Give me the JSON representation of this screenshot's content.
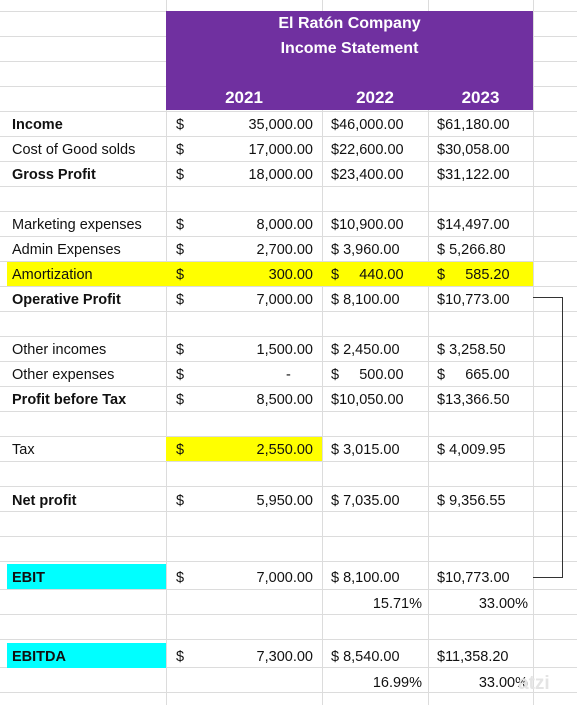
{
  "header": {
    "company": "El Ratón Company",
    "statement": "Income Statement",
    "years": [
      "2021",
      "2022",
      "2023"
    ]
  },
  "rows": {
    "income": {
      "label": "Income",
      "d": "$",
      "v2021": "35,000.00",
      "v2022": "$46,000.00",
      "v2023": "$61,180.00"
    },
    "cogs": {
      "label": "Cost of Good solds",
      "d": "$",
      "v2021": "17,000.00",
      "v2022": "$22,600.00",
      "v2023": "$30,058.00"
    },
    "gross": {
      "label": "Gross Profit",
      "d": "$",
      "v2021": "18,000.00",
      "v2022": "$23,400.00",
      "v2023": "$31,122.00"
    },
    "marketing": {
      "label": "Marketing expenses",
      "d": "$",
      "v2021": "8,000.00",
      "v2022": "$10,900.00",
      "v2023": "$14,497.00"
    },
    "admin": {
      "label": "Admin Expenses",
      "d": "$",
      "v2021": "2,700.00",
      "v2022": "$ 3,960.00",
      "v2023": "$ 5,266.80"
    },
    "amort": {
      "label": "Amortization",
      "d": "$",
      "v2021": "300.00",
      "v2022": "$     440.00",
      "v2023": "$     585.20"
    },
    "operative": {
      "label": "Operative Profit",
      "d": "$",
      "v2021": "7,000.00",
      "v2022": "$ 8,100.00",
      "v2023": "$10,773.00"
    },
    "other_inc": {
      "label": "Other incomes",
      "d": "$",
      "v2021": "1,500.00",
      "v2022": "$ 2,450.00",
      "v2023": "$ 3,258.50"
    },
    "other_exp": {
      "label": "Other expenses",
      "d": "$",
      "v2021": "-",
      "v2022": "$     500.00",
      "v2023": "$     665.00"
    },
    "pbt": {
      "label": "Profit before Tax",
      "d": "$",
      "v2021": "8,500.00",
      "v2022": "$10,050.00",
      "v2023": "$13,366.50"
    },
    "tax": {
      "label": "Tax",
      "d": "$",
      "v2021": "2,550.00",
      "v2022": "$ 3,015.00",
      "v2023": "$ 4,009.95"
    },
    "net": {
      "label": "Net profit",
      "d": "$",
      "v2021": "5,950.00",
      "v2022": "$ 7,035.00",
      "v2023": "$ 9,356.55"
    },
    "ebit": {
      "label": "EBIT",
      "d": "$",
      "v2021": "7,000.00",
      "v2022": "$ 8,100.00",
      "v2023": "$10,773.00",
      "p2022": "15.71%",
      "p2023": "33.00%"
    },
    "ebitda": {
      "label": "EBITDA",
      "d": "$",
      "v2021": "7,300.00",
      "v2022": "$ 8,540.00",
      "v2023": "$11,358.20",
      "p2022": "16.99%",
      "p2023": "33.00%"
    }
  },
  "watermark": "atzi",
  "colors": {
    "header_purple": "#7030a0",
    "highlight_yellow": "#ffff00",
    "highlight_cyan": "#00ffff"
  }
}
